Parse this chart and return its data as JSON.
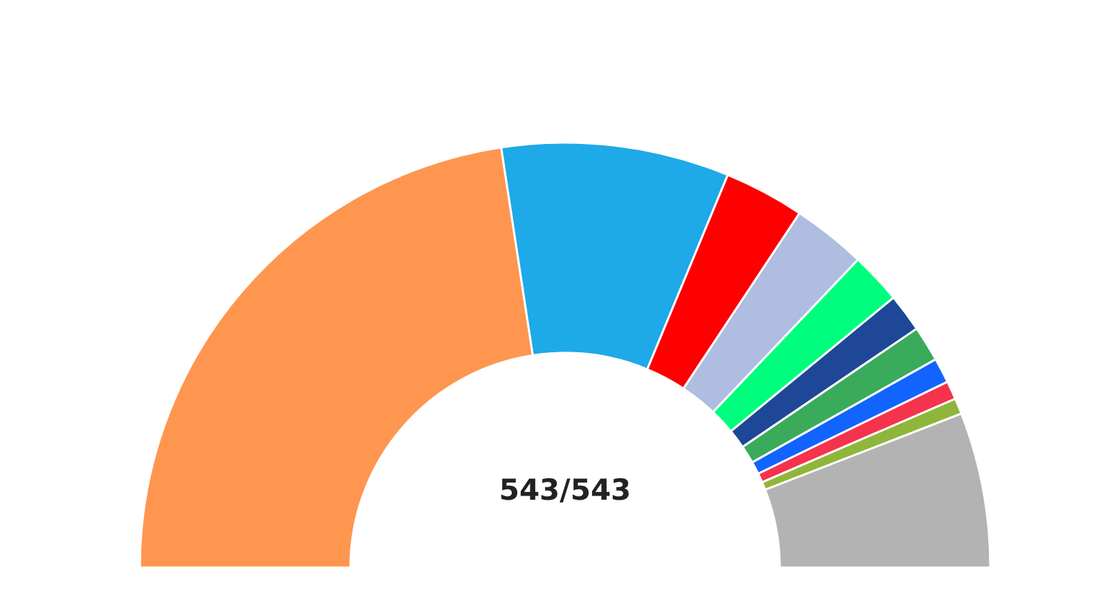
{
  "chart_data": {
    "type": "donut",
    "categories": [
      null,
      null,
      null,
      null,
      null,
      null,
      null,
      null,
      null,
      null,
      null
    ],
    "values": [
      45.2,
      17.3,
      6.1,
      5.6,
      3.9,
      2.9,
      2.7,
      1.9,
      1.4,
      1.2,
      11.8
    ],
    "colors": [
      "#fe9650",
      "#1ea9e8",
      "#fe0000",
      "#aebde0",
      "#00fe7e",
      "#1f4797",
      "#3aab5a",
      "#1164fe",
      "#f5334d",
      "#8fb63a",
      "#b3b3b3"
    ],
    "annotations": [
      "543/543"
    ]
  }
}
